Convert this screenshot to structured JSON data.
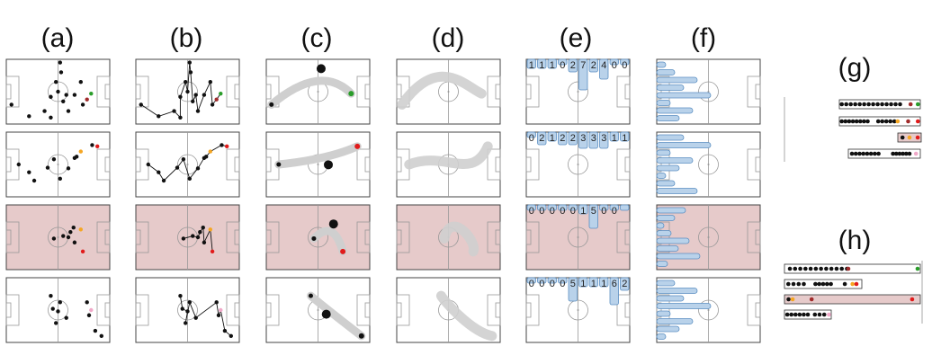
{
  "labels": {
    "a": "(a)",
    "b": "(b)",
    "c": "(c)",
    "d": "(d)",
    "e": "(e)",
    "f": "(f)",
    "g": "(g)",
    "h": "(h)"
  },
  "colors": {
    "pitch_line": "#444444",
    "pitch_inner": "#cccccc",
    "highlight_bg": "#e6caca",
    "bar_fill": "#b9d2ea",
    "bar_stroke": "#5b8fc2",
    "track_gray": "#cfcfcf",
    "dot_black": "#111111",
    "dot_green": "#2a9d2a",
    "dot_red": "#e11b1b",
    "dot_orange": "#f5a623",
    "dot_darkred": "#a12c2c",
    "dot_pink": "#f0a8c8"
  },
  "highlight_row": 2,
  "e_counts": [
    [
      "1",
      "1",
      "1",
      "0",
      "2",
      "7",
      "2",
      "4",
      "0",
      "0"
    ],
    [
      "0",
      "2",
      "1",
      "2",
      "2",
      "3",
      "3",
      "3",
      "1",
      "1"
    ],
    [
      "0",
      "0",
      "0",
      "0",
      "0",
      "1",
      "5",
      "0",
      "0",
      ""
    ],
    [
      "0",
      "0",
      "0",
      "0",
      "5",
      "1",
      "1",
      "1",
      "6",
      "2"
    ]
  ]
}
